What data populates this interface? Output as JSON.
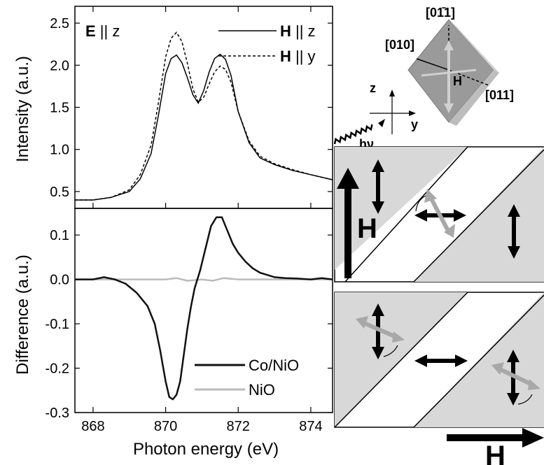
{
  "chart_data": [
    {
      "type": "line",
      "panel": "top",
      "annotation": {
        "bold": "E",
        "rest": " || z"
      },
      "ylabel": "Intensity (a.u.)",
      "xlim": [
        867.5,
        874.6
      ],
      "ylim": [
        0.3,
        2.7
      ],
      "yticks": [
        0.5,
        1.0,
        1.5,
        2.0,
        2.5
      ],
      "ytick_labels": [
        "0.5",
        "1.0",
        "1.5",
        "2.0",
        "2.5"
      ],
      "legend": [
        {
          "bold": "H",
          "rest": " || z",
          "style": "solid"
        },
        {
          "bold": "H",
          "rest": " || y",
          "style": "dashed"
        }
      ],
      "legend_position": "top-right",
      "series": [
        {
          "style": "solid",
          "x": [
            867.5,
            868.0,
            868.5,
            869.0,
            869.3,
            869.6,
            869.8,
            870.0,
            870.15,
            870.3,
            870.45,
            870.6,
            870.75,
            870.9,
            871.05,
            871.2,
            871.35,
            871.5,
            871.65,
            871.8,
            872.0,
            872.3,
            872.6,
            873.0,
            873.5,
            874.0,
            874.6
          ],
          "y": [
            0.4,
            0.4,
            0.43,
            0.5,
            0.65,
            0.95,
            1.4,
            1.9,
            2.08,
            2.12,
            2.03,
            1.85,
            1.65,
            1.55,
            1.7,
            1.92,
            2.08,
            2.13,
            2.07,
            1.88,
            1.45,
            1.08,
            0.9,
            0.82,
            0.75,
            0.7,
            0.64
          ]
        },
        {
          "style": "dashed",
          "x": [
            867.5,
            868.0,
            868.5,
            869.0,
            869.3,
            869.6,
            869.8,
            870.0,
            870.15,
            870.3,
            870.45,
            870.6,
            870.75,
            870.9,
            871.05,
            871.2,
            871.35,
            871.5,
            871.65,
            871.8,
            872.0,
            872.3,
            872.6,
            873.0,
            873.5,
            874.0,
            874.6
          ],
          "y": [
            0.4,
            0.4,
            0.43,
            0.52,
            0.7,
            1.05,
            1.55,
            2.1,
            2.32,
            2.39,
            2.28,
            2.02,
            1.72,
            1.56,
            1.62,
            1.78,
            1.92,
            1.99,
            1.95,
            1.8,
            1.45,
            1.1,
            0.92,
            0.83,
            0.76,
            0.7,
            0.64
          ]
        }
      ]
    },
    {
      "type": "line",
      "panel": "bottom",
      "xlabel": "Photon energy (eV)",
      "ylabel": "Difference (a.u.)",
      "xlim": [
        867.5,
        874.6
      ],
      "ylim": [
        -0.3,
        0.16
      ],
      "xticks": [
        868,
        870,
        872,
        874
      ],
      "xtick_labels": [
        "868",
        "870",
        "872",
        "874"
      ],
      "yticks": [
        -0.3,
        -0.2,
        -0.1,
        0.0,
        0.1
      ],
      "ytick_labels": [
        "-0.3",
        "-0.2",
        "-0.1",
        "0.0",
        "0.1"
      ],
      "legend_position": "bottom-right",
      "series": [
        {
          "name": "Co/NiO",
          "color": "#111111",
          "x": [
            867.5,
            868.0,
            868.3,
            868.6,
            868.9,
            869.2,
            869.5,
            869.7,
            869.85,
            870.0,
            870.1,
            870.2,
            870.3,
            870.4,
            870.5,
            870.6,
            870.7,
            870.8,
            870.95,
            871.1,
            871.25,
            871.4,
            871.55,
            871.7,
            871.85,
            872.0,
            872.2,
            872.4,
            872.6,
            872.8,
            873.0,
            873.3,
            873.6,
            874.0,
            874.3,
            874.6
          ],
          "y": [
            0.0,
            0.0,
            0.005,
            0.0,
            -0.01,
            -0.03,
            -0.06,
            -0.1,
            -0.16,
            -0.23,
            -0.265,
            -0.27,
            -0.26,
            -0.23,
            -0.17,
            -0.11,
            -0.06,
            -0.02,
            0.02,
            0.07,
            0.12,
            0.14,
            0.14,
            0.11,
            0.08,
            0.06,
            0.04,
            0.025,
            0.015,
            0.01,
            0.005,
            0.003,
            0.002,
            0.0,
            0.003,
            0.0
          ]
        },
        {
          "name": "NiO",
          "color": "#bbbbbb",
          "x": [
            867.5,
            868.0,
            868.5,
            869.0,
            869.5,
            870.0,
            870.3,
            870.6,
            871.0,
            871.3,
            871.6,
            872.0,
            872.5,
            873.0,
            873.5,
            874.0,
            874.6
          ],
          "y": [
            0.0,
            0.0,
            0.0,
            0.0,
            0.0,
            0.0,
            0.003,
            -0.003,
            0.0,
            -0.003,
            0.003,
            0.0,
            0.0,
            0.0,
            0.0,
            0.0,
            0.0
          ]
        }
      ]
    }
  ],
  "crystal": {
    "labels": {
      "top": "[01̄1]",
      "left": "[010]",
      "right": "[011]",
      "center": "H"
    },
    "colors": {
      "face": "#9a9a9a",
      "edge": "#cfcfcf",
      "arrow": "#cccccc"
    }
  },
  "axes_icon": {
    "z": "z",
    "y": "y",
    "photon": "hν"
  },
  "domains": {
    "colors": {
      "shaded": "#d8d8d8",
      "arrow_black": "#000000",
      "arrow_gray": "#a8a8a8"
    },
    "top_label": "H",
    "bottom_label": "H"
  }
}
